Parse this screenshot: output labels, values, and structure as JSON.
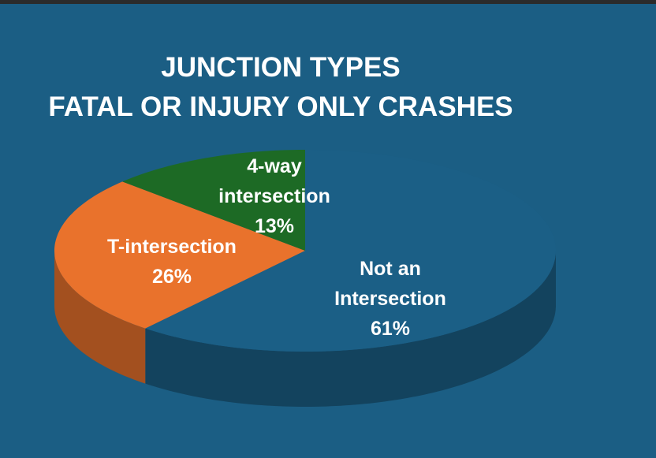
{
  "chart_data": {
    "type": "pie",
    "title": "JUNCTION TYPES",
    "subtitle": "FATAL OR INJURY ONLY CRASHES",
    "categories": [
      "Not an Intersection",
      "T-intersection",
      "4-way intersection"
    ],
    "values": [
      61,
      26,
      13
    ],
    "value_labels": [
      "61%",
      "26%",
      "13%"
    ],
    "colors": [
      "#1b5f86",
      "#e9722c",
      "#1d6a25"
    ]
  }
}
